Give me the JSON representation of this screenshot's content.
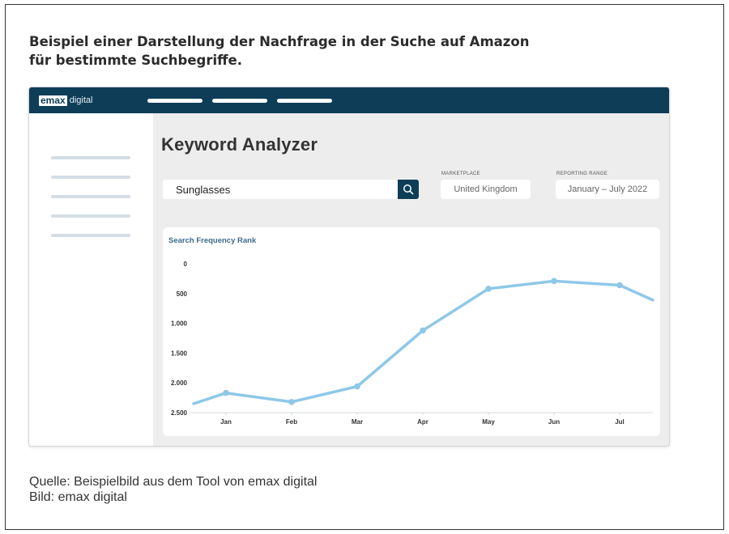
{
  "caption": {
    "line1": "Beispiel  einer Darstellung der Nachfrage in der Suche auf Amazon",
    "line2": "für bestimmte  Suchbegriffe."
  },
  "source": {
    "line1": "Quelle: Beispielbild aus dem Tool von emax digital",
    "line2": "Bild: emax digital"
  },
  "app": {
    "logo_box": "emax",
    "logo_text": "digital",
    "title": "Keyword Analyzer",
    "search": {
      "value": "Sunglasses",
      "icon": "search-icon"
    },
    "marketplace": {
      "label": "MARKETPLACE",
      "value": "United Kingdom"
    },
    "reporting": {
      "label": "REPORTING RANGE",
      "value": "January – July 2022"
    },
    "colors": {
      "nav": "#0e3d57",
      "line": "#8ec8e8",
      "background": "#ededed"
    }
  },
  "chart_data": {
    "type": "line",
    "title": "Search Frequency Rank",
    "categories": [
      "Jan",
      "Feb",
      "Mar",
      "Apr",
      "May",
      "Jun",
      "Jul"
    ],
    "y_ticks": [
      0,
      500,
      1000,
      1500,
      2000,
      2500
    ],
    "y_tick_labels": [
      "0",
      "500",
      "1.000",
      "1.500",
      "2.000",
      "2.500"
    ],
    "ylim": [
      0,
      2500
    ],
    "y_inverted": true,
    "series": [
      {
        "x": [
          "Jan",
          "Feb",
          "Mar",
          "Apr",
          "May",
          "Jun",
          "Jul"
        ],
        "values": [
          2170,
          2320,
          2060,
          1120,
          420,
          290,
          360
        ]
      }
    ],
    "start_value": 2350,
    "end_value": 610,
    "grid": false
  }
}
